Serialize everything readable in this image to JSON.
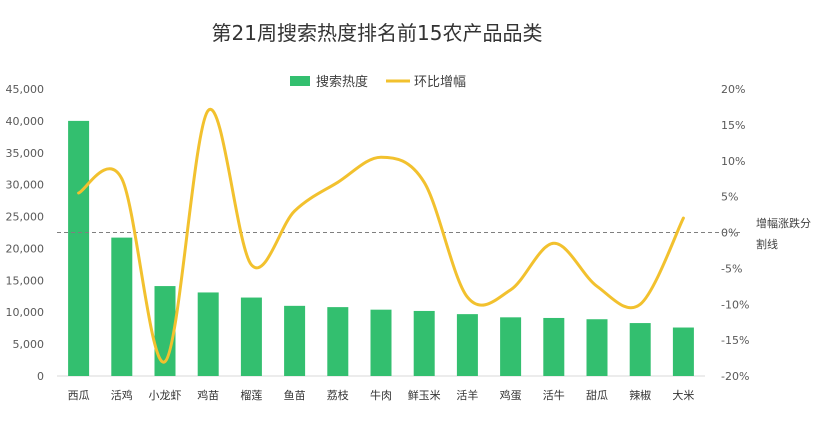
{
  "chart_data": {
    "type": "bar",
    "title": "第21周搜索热度排名前15农产品品类",
    "categories": [
      "西瓜",
      "活鸡",
      "小龙虾",
      "鸡苗",
      "榴莲",
      "鱼苗",
      "荔枝",
      "牛肉",
      "鲜玉米",
      "活羊",
      "鸡蛋",
      "活牛",
      "甜瓜",
      "辣椒",
      "大米"
    ],
    "series": [
      {
        "name": "搜索热度",
        "type": "bar",
        "axis": "left",
        "color": "#33bf6f",
        "values": [
          40000,
          21700,
          14100,
          13100,
          12300,
          11000,
          10800,
          10400,
          10200,
          9700,
          9200,
          9100,
          8900,
          8300,
          7600
        ]
      },
      {
        "name": "环比增幅",
        "type": "line",
        "axis": "right",
        "unit": "%",
        "color": "#f2c12e",
        "values": [
          5.5,
          7.5,
          -18,
          17,
          -4.5,
          3,
          7,
          10.5,
          7,
          -9,
          -8,
          -1.5,
          -7.5,
          -10,
          2
        ]
      }
    ],
    "y_left": {
      "min": 0,
      "max": 45000,
      "step": 5000,
      "tick_labels": [
        "0",
        "5,000",
        "10,000",
        "15,000",
        "20,000",
        "25,000",
        "30,000",
        "35,000",
        "40,000",
        "45,000"
      ]
    },
    "y_right": {
      "min": -20,
      "max": 20,
      "step": 5,
      "tick_labels": [
        "-20%",
        "-15%",
        "-10%",
        "-5%",
        "0%",
        "5%",
        "10%",
        "15%",
        "20%"
      ]
    },
    "reference_line": {
      "value": 0,
      "axis": "right",
      "label_lines": [
        "增幅涨跌分",
        "割线"
      ]
    },
    "legend_position": "top-center",
    "grid": false
  },
  "colors": {
    "bar": "#33bf6f",
    "line": "#f2c12e",
    "reference": "#7f7f7f",
    "text": "#333333"
  }
}
